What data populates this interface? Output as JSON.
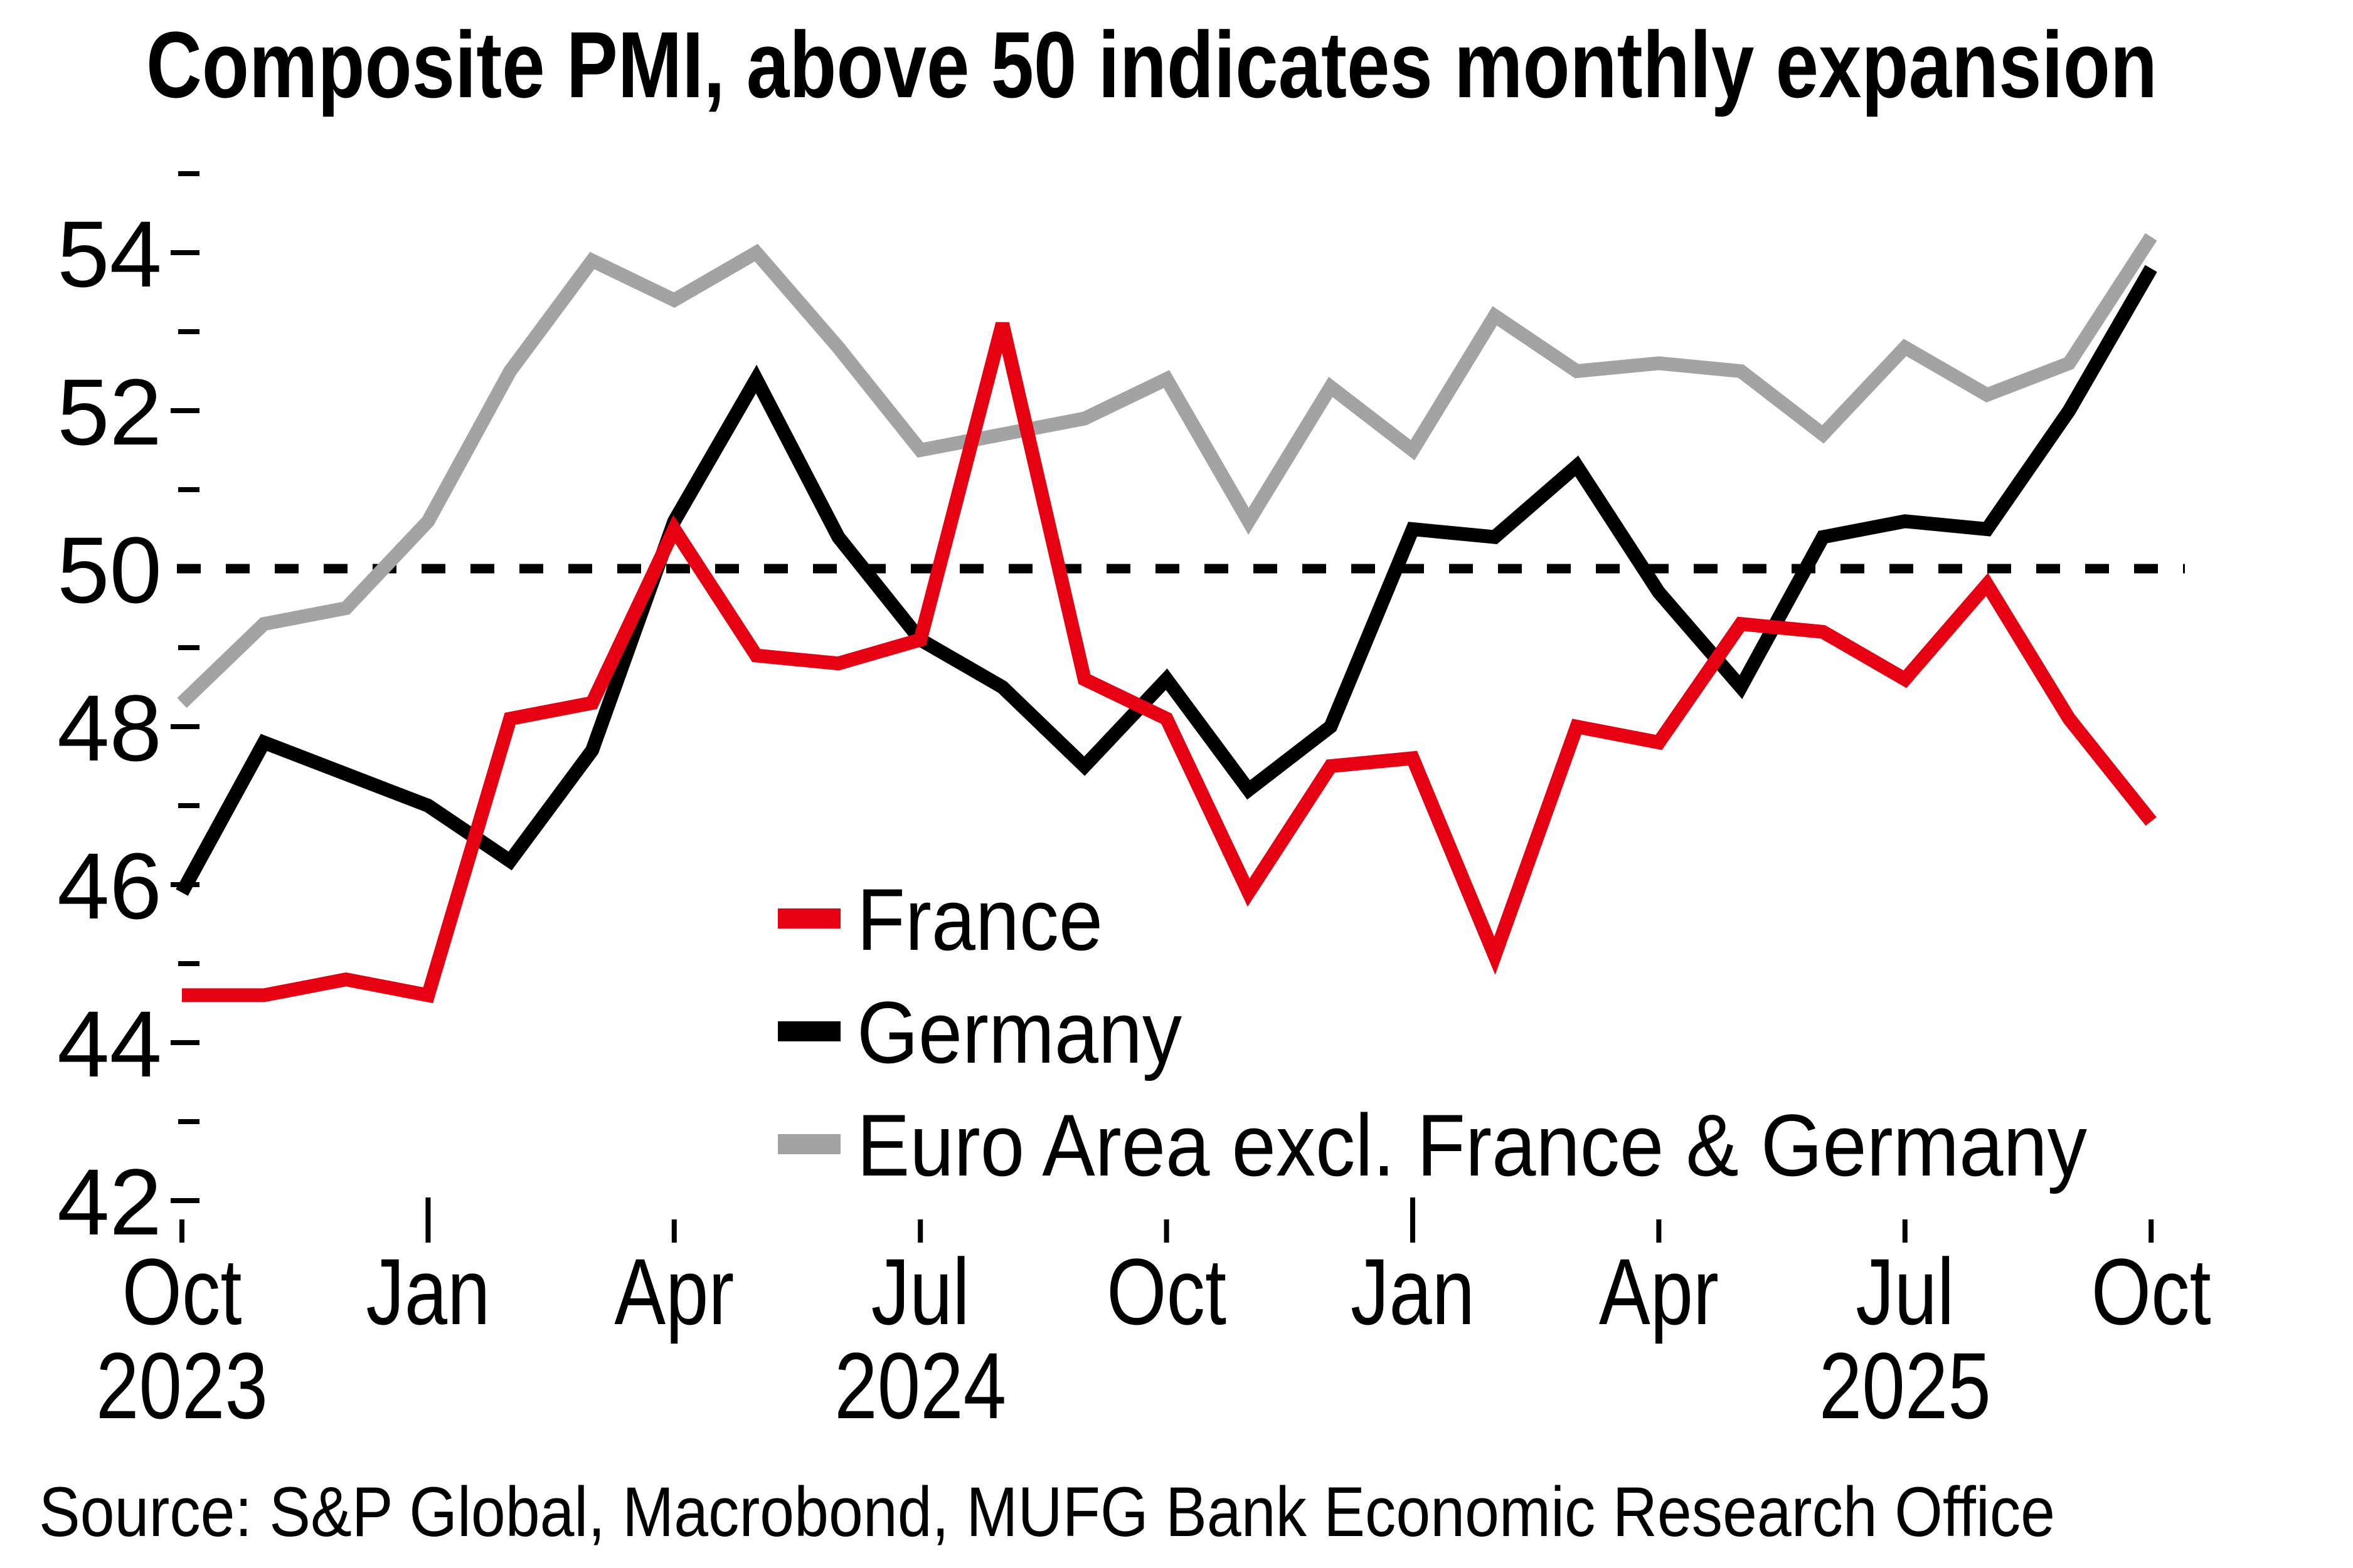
{
  "title": "Composite PMI, above 50 indicates monthly expansion",
  "source": "Source: S&P Global, Macrobond, MUFG Bank Economic Research Office",
  "colors": {
    "france": "#e60012",
    "germany": "#000000",
    "euro_area_excl": "#a3a3a3",
    "reference_line": "#000000",
    "axis": "#000000",
    "background": "#ffffff"
  },
  "legend": [
    {
      "label": "France",
      "series": "france"
    },
    {
      "label": "Germany",
      "series": "germany"
    },
    {
      "label": "Euro Area excl. France & Germany",
      "series": "euro_area_excl"
    }
  ],
  "y_axis": {
    "major_labels": [
      "54",
      "52",
      "50",
      "48",
      "46",
      "44",
      "42"
    ],
    "major_values": [
      54,
      52,
      50,
      48,
      46,
      44,
      42
    ],
    "minor_values": [
      55,
      53,
      51,
      49,
      47,
      45,
      43
    ]
  },
  "x_axis": {
    "quarter_ticks": [
      {
        "label": "Oct",
        "month_index": 0
      },
      {
        "label": "Jan",
        "month_index": 3
      },
      {
        "label": "Apr",
        "month_index": 6
      },
      {
        "label": "Jul",
        "month_index": 9
      },
      {
        "label": "Oct",
        "month_index": 12
      },
      {
        "label": "Jan",
        "month_index": 15
      },
      {
        "label": "Apr",
        "month_index": 18
      },
      {
        "label": "Jul",
        "month_index": 21
      },
      {
        "label": "Oct",
        "month_index": 24
      }
    ],
    "year_labels": [
      {
        "label": "2023",
        "month_index": 0
      },
      {
        "label": "2024",
        "month_index": 9
      },
      {
        "label": "2025",
        "month_index": 21
      }
    ],
    "tall_tick_month_indices": [
      3,
      15
    ]
  },
  "reference_line": {
    "value": 50,
    "style": "dashed"
  },
  "chart_data": {
    "type": "line",
    "x": [
      "Oct 2023",
      "Nov 2023",
      "Dec 2023",
      "Jan 2024",
      "Feb 2024",
      "Mar 2024",
      "Apr 2024",
      "May 2024",
      "Jun 2024",
      "Jul 2024",
      "Aug 2024",
      "Sep 2024",
      "Oct 2024",
      "Nov 2024",
      "Dec 2024",
      "Jan 2025",
      "Feb 2025",
      "Mar 2025",
      "Apr 2025",
      "May 2025",
      "Jun 2025",
      "Jul 2025",
      "Aug 2025",
      "Sep 2025",
      "Oct 2025"
    ],
    "series": [
      {
        "name": "France",
        "color": "#e60012",
        "values": [
          44.6,
          44.6,
          44.8,
          44.6,
          48.1,
          48.3,
          50.5,
          48.9,
          48.8,
          49.1,
          53.1,
          48.6,
          48.1,
          45.9,
          47.5,
          47.6,
          45.1,
          48.0,
          47.8,
          49.3,
          49.2,
          48.6,
          49.8,
          48.1,
          46.8
        ]
      },
      {
        "name": "Germany",
        "color": "#000000",
        "values": [
          45.9,
          47.8,
          47.4,
          47.0,
          46.3,
          47.7,
          50.6,
          52.4,
          50.4,
          49.1,
          48.5,
          47.5,
          48.6,
          47.2,
          48.0,
          50.5,
          50.4,
          51.3,
          49.7,
          48.5,
          50.4,
          50.6,
          50.5,
          52.0,
          53.8
        ]
      },
      {
        "name": "Euro Area excl. France & Germany",
        "color": "#a3a3a3",
        "values": [
          48.3,
          49.3,
          49.5,
          50.6,
          52.5,
          53.9,
          53.4,
          54.0,
          52.8,
          51.5,
          51.7,
          51.9,
          52.4,
          50.6,
          52.3,
          51.5,
          53.2,
          52.5,
          52.6,
          52.5,
          51.7,
          52.8,
          52.2,
          52.6,
          54.2
        ]
      }
    ],
    "title": "Composite PMI, above 50 indicates monthly expansion",
    "xlabel": "",
    "ylabel": "",
    "ylim": [
      42,
      55
    ],
    "grid": false,
    "reference_line_y": 50,
    "legend_position": "inside-lower-center"
  }
}
